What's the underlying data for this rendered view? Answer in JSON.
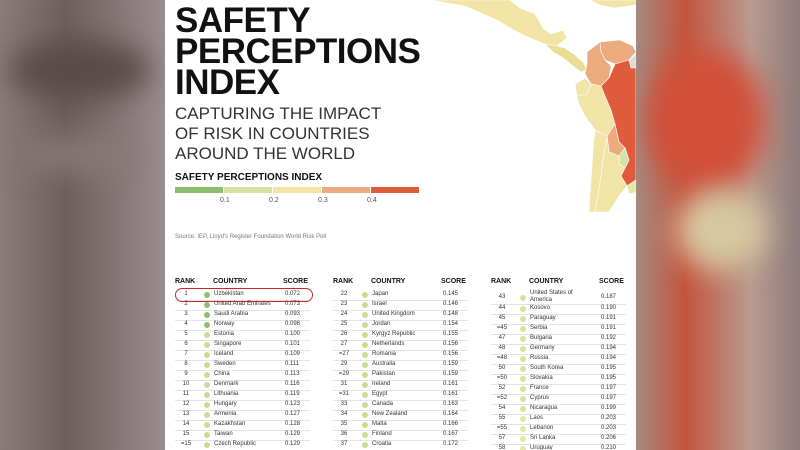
{
  "title_lines": [
    "SAFETY",
    "PERCEPTIONS",
    "INDEX"
  ],
  "subtitle_lines": [
    "CAPTURING THE IMPACT",
    "OF RISK IN COUNTRIES",
    "AROUND THE WORLD"
  ],
  "legend": {
    "title": "SAFETY PERCEPTIONS INDEX",
    "colors": [
      "#8fbf6a",
      "#d6e3a0",
      "#f1e4a6",
      "#ecab7e",
      "#e05b3c"
    ],
    "ticks": [
      "0.1",
      "0.2",
      "0.3",
      "0.4"
    ]
  },
  "source": "Source: IEP, Lloyd's Register Foundation World Risk Poll",
  "table": {
    "headers": {
      "rank": "RANK",
      "country": "COUNTRY",
      "score": "SCORE"
    },
    "columns": [
      [
        {
          "rank": "1",
          "country": "Uzbekistan",
          "score": "0.072",
          "color": "#8fbf6a"
        },
        {
          "rank": "2",
          "country": "United Arab Emirates",
          "score": "0.073",
          "color": "#8fbf6a"
        },
        {
          "rank": "3",
          "country": "Saudi Arabia",
          "score": "0.093",
          "color": "#8fbf6a"
        },
        {
          "rank": "4",
          "country": "Norway",
          "score": "0.098",
          "color": "#8fbf6a"
        },
        {
          "rank": "5",
          "country": "Estonia",
          "score": "0.100",
          "color": "#c8dc94"
        },
        {
          "rank": "6",
          "country": "Singapore",
          "score": "0.101",
          "color": "#c8dc94"
        },
        {
          "rank": "7",
          "country": "Iceland",
          "score": "0.109",
          "color": "#c8dc94"
        },
        {
          "rank": "8",
          "country": "Sweden",
          "score": "0.111",
          "color": "#c8dc94"
        },
        {
          "rank": "9",
          "country": "China",
          "score": "0.113",
          "color": "#c8dc94"
        },
        {
          "rank": "10",
          "country": "Denmark",
          "score": "0.116",
          "color": "#c8dc94"
        },
        {
          "rank": "11",
          "country": "Lithuania",
          "score": "0.119",
          "color": "#c8dc94"
        },
        {
          "rank": "12",
          "country": "Hungary",
          "score": "0.123",
          "color": "#c8dc94"
        },
        {
          "rank": "13",
          "country": "Armenia",
          "score": "0.127",
          "color": "#c8dc94"
        },
        {
          "rank": "14",
          "country": "Kazakhstan",
          "score": "0.128",
          "color": "#c8dc94"
        },
        {
          "rank": "15",
          "country": "Taiwan",
          "score": "0.129",
          "color": "#c8dc94"
        },
        {
          "rank": "=15",
          "country": "Czech Republic",
          "score": "0.129",
          "color": "#c8dc94"
        }
      ],
      [
        {
          "rank": "22",
          "country": "Japan",
          "score": "0.145",
          "color": "#c8dc94"
        },
        {
          "rank": "23",
          "country": "Israel",
          "score": "0.146",
          "color": "#c8dc94"
        },
        {
          "rank": "24",
          "country": "United Kingdom",
          "score": "0.148",
          "color": "#c8dc94"
        },
        {
          "rank": "25",
          "country": "Jordan",
          "score": "0.154",
          "color": "#c8dc94"
        },
        {
          "rank": "26",
          "country": "Kyrgyz Republic",
          "score": "0.155",
          "color": "#c8dc94"
        },
        {
          "rank": "27",
          "country": "Netherlands",
          "score": "0.156",
          "color": "#c8dc94"
        },
        {
          "rank": "=27",
          "country": "Romania",
          "score": "0.156",
          "color": "#c8dc94"
        },
        {
          "rank": "29",
          "country": "Australia",
          "score": "0.159",
          "color": "#c8dc94"
        },
        {
          "rank": "=29",
          "country": "Pakistan",
          "score": "0.159",
          "color": "#c8dc94"
        },
        {
          "rank": "31",
          "country": "Ireland",
          "score": "0.161",
          "color": "#c8dc94"
        },
        {
          "rank": "=31",
          "country": "Egypt",
          "score": "0.161",
          "color": "#c8dc94"
        },
        {
          "rank": "33",
          "country": "Canada",
          "score": "0.163",
          "color": "#c8dc94"
        },
        {
          "rank": "34",
          "country": "New Zealand",
          "score": "0.164",
          "color": "#c8dc94"
        },
        {
          "rank": "35",
          "country": "Malta",
          "score": "0.166",
          "color": "#c8dc94"
        },
        {
          "rank": "36",
          "country": "Finland",
          "score": "0.167",
          "color": "#c8dc94"
        },
        {
          "rank": "37",
          "country": "Croatia",
          "score": "0.172",
          "color": "#c8dc94"
        }
      ],
      [
        {
          "rank": "43",
          "country": "United States of America",
          "score": "0.187",
          "color": "#d6e3a0",
          "two_line": true
        },
        {
          "rank": "44",
          "country": "Kosovo",
          "score": "0.190",
          "color": "#d6e3a0"
        },
        {
          "rank": "45",
          "country": "Paraguay",
          "score": "0.191",
          "color": "#d6e3a0"
        },
        {
          "rank": "=45",
          "country": "Serbia",
          "score": "0.191",
          "color": "#d6e3a0"
        },
        {
          "rank": "47",
          "country": "Bulgaria",
          "score": "0.192",
          "color": "#d6e3a0"
        },
        {
          "rank": "48",
          "country": "Germany",
          "score": "0.194",
          "color": "#d6e3a0"
        },
        {
          "rank": "=48",
          "country": "Russia",
          "score": "0.194",
          "color": "#d6e3a0"
        },
        {
          "rank": "50",
          "country": "South Korea",
          "score": "0.195",
          "color": "#d6e3a0"
        },
        {
          "rank": "=50",
          "country": "Slovakia",
          "score": "0.195",
          "color": "#d6e3a0"
        },
        {
          "rank": "52",
          "country": "France",
          "score": "0.197",
          "color": "#d6e3a0"
        },
        {
          "rank": "=52",
          "country": "Cyprus",
          "score": "0.197",
          "color": "#d6e3a0"
        },
        {
          "rank": "54",
          "country": "Nicaragua",
          "score": "0.199",
          "color": "#d6e3a0"
        },
        {
          "rank": "55",
          "country": "Laos",
          "score": "0.203",
          "color": "#e3e6a6"
        },
        {
          "rank": "=55",
          "country": "Lebanon",
          "score": "0.203",
          "color": "#e3e6a6"
        },
        {
          "rank": "57",
          "country": "Sri Lanka",
          "score": "0.206",
          "color": "#e3e6a6"
        },
        {
          "rank": "58",
          "country": "Uruguay",
          "score": "0.210",
          "color": "#e3e6a6"
        }
      ]
    ]
  },
  "map_regions": [
    {
      "name": "mexico",
      "color": "#f1e4a6"
    },
    {
      "name": "central-america",
      "color": "#e9dc95"
    },
    {
      "name": "venezuela",
      "color": "#ecab7e"
    },
    {
      "name": "colombia",
      "color": "#ecab7e"
    },
    {
      "name": "ecuador",
      "color": "#f1e4a6"
    },
    {
      "name": "peru",
      "color": "#f1e4a6"
    },
    {
      "name": "brazil",
      "color": "#e05b3c"
    },
    {
      "name": "bolivia",
      "color": "#ecab7e"
    },
    {
      "name": "paraguay",
      "color": "#d6e3a0"
    },
    {
      "name": "chile",
      "color": "#f1e4a6"
    },
    {
      "name": "argentina",
      "color": "#f1e4a6"
    },
    {
      "name": "uruguay",
      "color": "#e3e6a6"
    },
    {
      "name": "guianas",
      "color": "#dcdcdc"
    },
    {
      "name": "usa-edge",
      "color": "#f1e4a6"
    }
  ]
}
